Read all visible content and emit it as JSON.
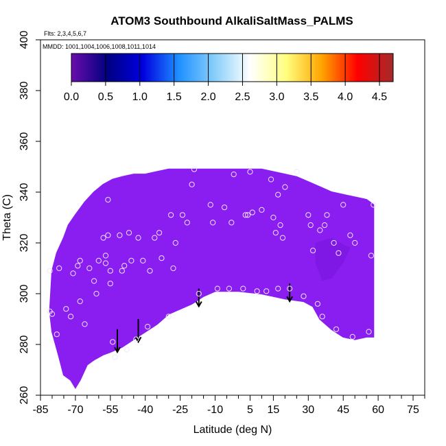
{
  "chart_data": {
    "type": "scatter",
    "title": "ATOM3 Southbound AlkaliSaltMass_PALMS",
    "flights_note": "Flts: 2,3,4,5,6,7",
    "dates_note": "MMDD: 1001,1004,1006,1008,1011,1014",
    "xlabel": "Latitude (deg N)",
    "ylabel": "Theta (C)",
    "xlim": [
      -85,
      80
    ],
    "ylim": [
      260,
      400
    ],
    "x_ticks": [
      -85,
      -70,
      -55,
      -40,
      -25,
      -10,
      5,
      15,
      30,
      45,
      60,
      75
    ],
    "x_minor_ticks": [
      -80,
      -75,
      -65,
      -60,
      -50,
      -45,
      -35,
      -30,
      -20,
      -15,
      -5,
      0,
      10,
      20,
      25,
      35,
      40,
      50,
      55,
      65,
      70,
      80
    ],
    "y_ticks": [
      260,
      280,
      300,
      320,
      340,
      360,
      380,
      400
    ],
    "colorbar": {
      "range": [
        0,
        4.7
      ],
      "ticks": [
        0.0,
        0.5,
        1.0,
        1.5,
        2.0,
        2.5,
        3.0,
        3.5,
        4.0,
        4.5
      ],
      "tick_labels": [
        "0.0",
        "0.5",
        "1.0",
        "1.5",
        "2.0",
        "2.5",
        "3.0",
        "3.5",
        "4.0",
        "4.5"
      ],
      "colors": [
        "#6a0dad",
        "#000080",
        "#0000e0",
        "#1e90ff",
        "#87cefa",
        "#ffffff",
        "#ffff80",
        "#ffa500",
        "#ff0000",
        "#a52a2a"
      ]
    },
    "field": {
      "fill_color": "#8a1ef0",
      "value_level": 0.0,
      "boundary_top": [
        [
          -80,
          309
        ],
        [
          -78,
          316
        ],
        [
          -75,
          322
        ],
        [
          -73,
          327
        ],
        [
          -70,
          331
        ],
        [
          -66,
          336
        ],
        [
          -62,
          340
        ],
        [
          -58,
          343
        ],
        [
          -54,
          345
        ],
        [
          -50,
          346
        ],
        [
          -45,
          347
        ],
        [
          -40,
          347
        ],
        [
          -35,
          348
        ],
        [
          -30,
          349
        ],
        [
          -20,
          349
        ],
        [
          -10,
          349
        ],
        [
          0,
          349
        ],
        [
          10,
          349
        ],
        [
          20,
          347
        ],
        [
          25,
          346
        ],
        [
          30,
          344
        ],
        [
          35,
          342
        ],
        [
          40,
          340
        ],
        [
          45,
          339
        ],
        [
          50,
          338
        ],
        [
          55,
          337
        ],
        [
          58,
          335
        ]
      ],
      "boundary_bottom": [
        [
          58,
          283
        ],
        [
          55,
          283
        ],
        [
          50,
          282
        ],
        [
          45,
          283
        ],
        [
          40,
          286
        ],
        [
          35,
          290
        ],
        [
          32,
          295
        ],
        [
          28,
          297
        ],
        [
          20,
          298
        ],
        [
          10,
          300
        ],
        [
          0,
          301
        ],
        [
          -10,
          301
        ],
        [
          -15,
          299
        ],
        [
          -20,
          296
        ],
        [
          -25,
          294
        ],
        [
          -30,
          292
        ],
        [
          -35,
          288
        ],
        [
          -40,
          285
        ],
        [
          -45,
          282
        ],
        [
          -50,
          279
        ],
        [
          -55,
          277
        ],
        [
          -58,
          276
        ],
        [
          -62,
          274
        ],
        [
          -65,
          272
        ],
        [
          -68,
          266
        ],
        [
          -70,
          263
        ],
        [
          -72,
          266
        ],
        [
          -75,
          268
        ],
        [
          -77,
          275
        ],
        [
          -80,
          285
        ],
        [
          -81,
          293
        ]
      ],
      "patch_darker": [
        [
          33,
          320
        ],
        [
          40,
          322
        ],
        [
          48,
          318
        ],
        [
          45,
          312
        ],
        [
          40,
          306
        ],
        [
          36,
          305
        ],
        [
          33,
          312
        ]
      ]
    },
    "observations": [
      [
        -81,
        309
      ],
      [
        -81,
        293
      ],
      [
        -80,
        292
      ],
      [
        -78,
        284
      ],
      [
        -77,
        310
      ],
      [
        -74,
        294
      ],
      [
        -72,
        291
      ],
      [
        -71,
        308
      ],
      [
        -69,
        311
      ],
      [
        -68,
        313
      ],
      [
        -68,
        297
      ],
      [
        -66,
        288
      ],
      [
        -64,
        310
      ],
      [
        -62,
        305
      ],
      [
        -61,
        300
      ],
      [
        -60,
        313
      ],
      [
        -58,
        322
      ],
      [
        -57,
        315
      ],
      [
        -57,
        312
      ],
      [
        -56,
        323
      ],
      [
        -56,
        337
      ],
      [
        -55,
        309
      ],
      [
        -55,
        304
      ],
      [
        -54,
        281
      ],
      [
        -53,
        275
      ],
      [
        -51,
        323
      ],
      [
        -50,
        309
      ],
      [
        -49,
        311
      ],
      [
        -48,
        278
      ],
      [
        -47,
        324
      ],
      [
        -46,
        313
      ],
      [
        -44,
        282
      ],
      [
        -43,
        322
      ],
      [
        -41,
        313
      ],
      [
        -39,
        287
      ],
      [
        -38,
        309
      ],
      [
        -36,
        322
      ],
      [
        -34,
        324
      ],
      [
        -33,
        314
      ],
      [
        -30,
        291
      ],
      [
        -29,
        331
      ],
      [
        -28,
        310
      ],
      [
        -27,
        320
      ],
      [
        -24,
        331
      ],
      [
        -22,
        328
      ],
      [
        -20,
        343
      ],
      [
        -19,
        349
      ],
      [
        -17,
        300
      ],
      [
        -12,
        335
      ],
      [
        -11,
        328
      ],
      [
        -9,
        302
      ],
      [
        -6,
        334
      ],
      [
        -4,
        302
      ],
      [
        -3,
        328
      ],
      [
        -2,
        347
      ],
      [
        2,
        302
      ],
      [
        3,
        331
      ],
      [
        4,
        331
      ],
      [
        5,
        348
      ],
      [
        6,
        332
      ],
      [
        8,
        301
      ],
      [
        10,
        333
      ],
      [
        12,
        301
      ],
      [
        14,
        345
      ],
      [
        15,
        330
      ],
      [
        16,
        324
      ],
      [
        17,
        302
      ],
      [
        17,
        339
      ],
      [
        18,
        327
      ],
      [
        19,
        322
      ],
      [
        20,
        342
      ],
      [
        22,
        302
      ],
      [
        25,
        348
      ],
      [
        28,
        299
      ],
      [
        30,
        331
      ],
      [
        31,
        327
      ],
      [
        32,
        317
      ],
      [
        34,
        296
      ],
      [
        35,
        325
      ],
      [
        36,
        291
      ],
      [
        37,
        327
      ],
      [
        38,
        331
      ],
      [
        41,
        320
      ],
      [
        42,
        286
      ],
      [
        43,
        316
      ],
      [
        45,
        335
      ],
      [
        48,
        323
      ],
      [
        49,
        283
      ],
      [
        50,
        320
      ],
      [
        56,
        285
      ],
      [
        57,
        315
      ],
      [
        58,
        335
      ]
    ],
    "arrows": [
      {
        "x": -52,
        "y_from": 286,
        "y_to": 277
      },
      {
        "x": -43,
        "y_from": 290,
        "y_to": 281
      },
      {
        "x": -17,
        "y_from": 302,
        "y_to": 295
      },
      {
        "x": 22,
        "y_from": 304,
        "y_to": 297
      }
    ]
  }
}
